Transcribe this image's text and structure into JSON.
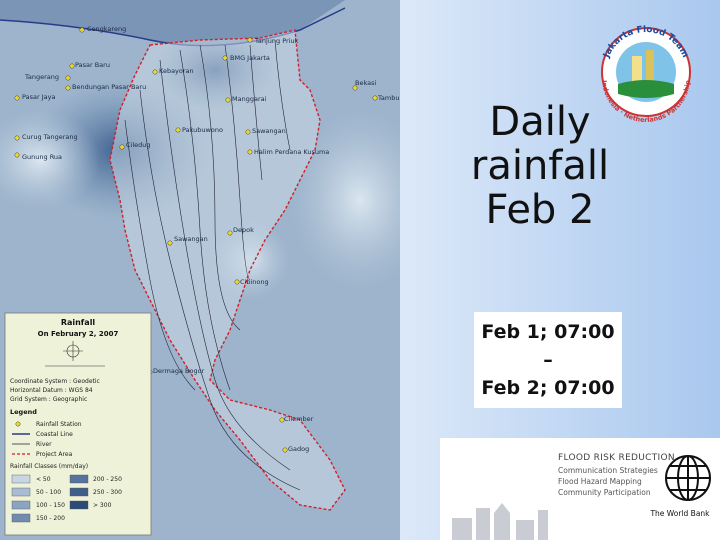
{
  "title": [
    "Daily",
    "rainfall",
    "Feb 2"
  ],
  "period": [
    "Feb 1; 07:00",
    "–",
    "Feb 2; 07:00"
  ],
  "map": {
    "stations": [
      "Cengkareng",
      "Tanjung Priuk",
      "Pasar Baru",
      "BMG Jakarta",
      "Tangerang",
      "Kebayoran",
      "Bendungan Pasar Baru",
      "Pasar Jaya",
      "Bekasi",
      "Tambun",
      "Manggarai",
      "Curug Tangerang",
      "Pakubuwono",
      "Sawangan",
      "Ciledug",
      "Gunung Rua",
      "Halim Perdana Kusuma",
      "Sawangan",
      "Depok",
      "Cibinong",
      "Dermaga Bogor",
      "Cilember",
      "Gadog"
    ],
    "legend": {
      "title": "Rainfall",
      "subtitle": "On February 2, 2007",
      "info": [
        "Coordinate System : Geodetic",
        "Horizontal Datum : WGS 84",
        "Grid System : Geographic"
      ],
      "heading": "Legend",
      "items": [
        "Rainfall Station",
        "Coastal Line",
        "River",
        "Project Area"
      ],
      "classes_title": "Rainfall Classes (mm/day)",
      "classes": [
        "< 50",
        "50 - 100",
        "100 - 150",
        "150 - 200",
        "200 - 250",
        "250 - 300",
        "> 300"
      ]
    }
  },
  "logos": {
    "team": {
      "title": "Jakarta Flood Team",
      "subtitle": "Indonesia · Netherlands Partnership"
    },
    "frr": {
      "heading": "FLOOD RISK REDUCTION",
      "items": [
        "Communication Strategies",
        "Flood Hazard Mapping",
        "Community Participation"
      ],
      "world_bank": "The World Bank"
    }
  }
}
